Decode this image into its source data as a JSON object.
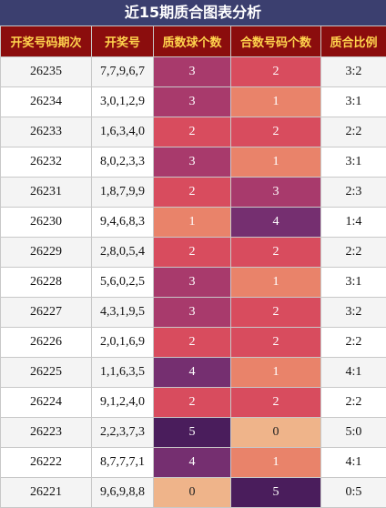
{
  "title": "近15期质合图表分析",
  "table": {
    "headers": [
      "开奖号码期次",
      "开奖号",
      "质数球个数",
      "合数号码个数",
      "质合比例"
    ],
    "rows": [
      [
        "26235",
        "7,7,9,6,7",
        3,
        2,
        "3:2"
      ],
      [
        "26234",
        "3,0,1,2,9",
        3,
        1,
        "3:1"
      ],
      [
        "26233",
        "1,6,3,4,0",
        2,
        2,
        "2:2"
      ],
      [
        "26232",
        "8,0,2,3,3",
        3,
        1,
        "3:1"
      ],
      [
        "26231",
        "1,8,7,9,9",
        2,
        3,
        "2:3"
      ],
      [
        "26230",
        "9,4,6,8,3",
        1,
        4,
        "1:4"
      ],
      [
        "26229",
        "2,8,0,5,4",
        2,
        2,
        "2:2"
      ],
      [
        "26228",
        "5,6,0,2,5",
        3,
        1,
        "3:1"
      ],
      [
        "26227",
        "4,3,1,9,5",
        3,
        2,
        "3:2"
      ],
      [
        "26226",
        "2,0,1,6,9",
        2,
        2,
        "2:2"
      ],
      [
        "26225",
        "1,1,6,3,5",
        4,
        1,
        "4:1"
      ],
      [
        "26224",
        "9,1,2,4,0",
        2,
        2,
        "2:2"
      ],
      [
        "26223",
        "2,2,3,7,3",
        5,
        0,
        "5:0"
      ],
      [
        "26222",
        "8,7,7,7,1",
        4,
        1,
        "4:1"
      ],
      [
        "26221",
        "9,6,9,8,8",
        0,
        5,
        "0:5"
      ]
    ],
    "count_colors": [
      "#efb48a",
      "#e9836a",
      "#d84c5e",
      "#a83a6c",
      "#752f70",
      "#4a1d5c"
    ]
  }
}
